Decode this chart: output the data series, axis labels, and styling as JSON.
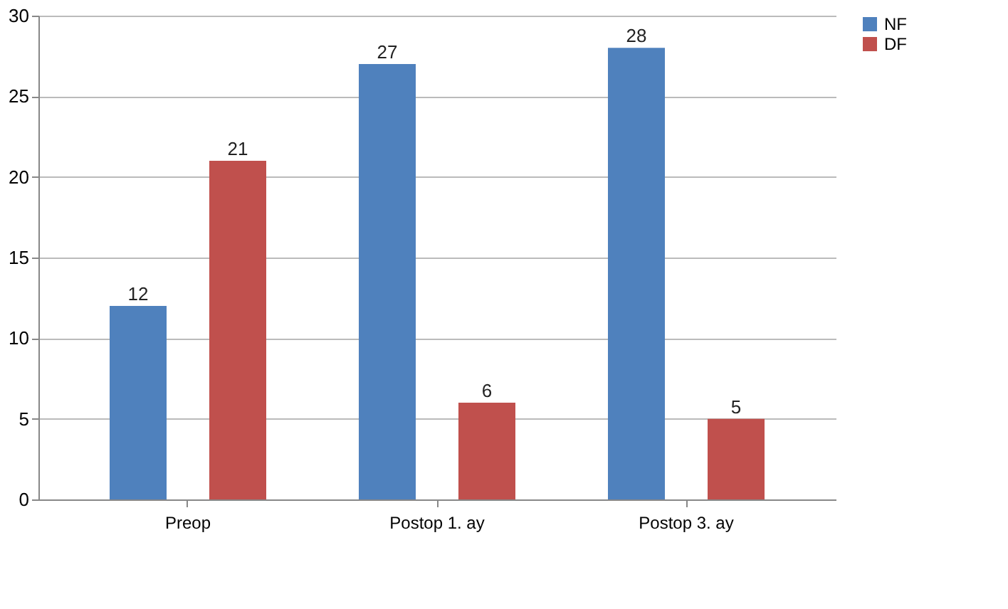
{
  "chart_data": {
    "type": "bar",
    "categories": [
      "Preop",
      "Postop 1. ay",
      "Postop 3. ay"
    ],
    "series": [
      {
        "name": "NF",
        "color": "#4f81bd",
        "values": [
          12,
          27,
          28
        ]
      },
      {
        "name": "DF",
        "color": "#c0504d",
        "values": [
          21,
          6,
          5
        ]
      }
    ],
    "ylim": [
      0,
      30
    ],
    "yticks": [
      0,
      5,
      10,
      15,
      20,
      25,
      30
    ],
    "grid": "y",
    "legend": "right",
    "data_labels": true
  }
}
